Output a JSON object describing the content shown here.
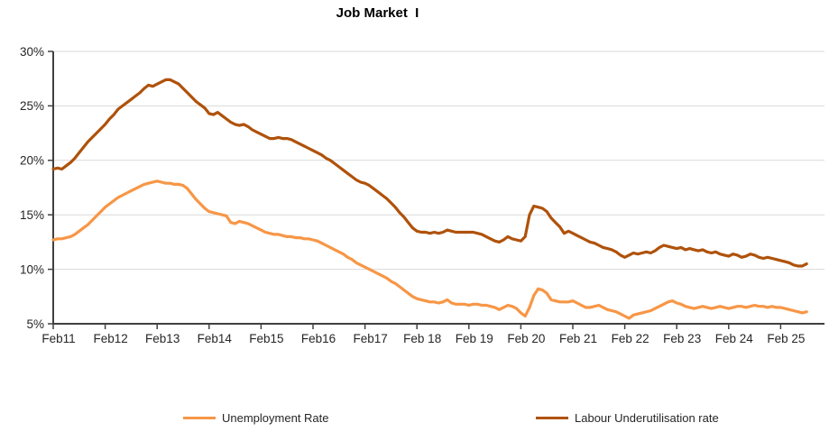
{
  "chart_data": {
    "type": "line",
    "title": "Job Market  I",
    "y_axis": {
      "min": 5,
      "max": 30,
      "tick_values": [
        5,
        10,
        15,
        20,
        25,
        30
      ],
      "tick_labels": [
        "5%",
        "10%",
        "15%",
        "20%",
        "25%",
        "30%"
      ],
      "gridlines": true,
      "gridline_color": "#D9D9D9",
      "axis_color": "#404040",
      "label_color": "#262626"
    },
    "x_axis": {
      "tick_labels": [
        "Feb11",
        "Feb12",
        "Feb13",
        "Feb14",
        "Feb15",
        "Feb16",
        "Feb17",
        "Feb 18",
        "Feb 19",
        "Feb 20",
        "Feb 21",
        "Feb 22",
        "Feb 23",
        "Feb 24",
        "Feb 25"
      ],
      "frequency": "monthly",
      "start": "Feb 2011",
      "end": "Aug 2025"
    },
    "legend": {
      "position": "bottom",
      "items": [
        "Unemployment Rate",
        "Labour Underutilisation rate"
      ]
    },
    "series": [
      {
        "name": "Unemployment Rate",
        "color": "#F79646",
        "values": [
          12.7,
          12.8,
          12.8,
          12.9,
          13.0,
          13.2,
          13.5,
          13.8,
          14.1,
          14.5,
          14.9,
          15.3,
          15.7,
          16.0,
          16.3,
          16.6,
          16.8,
          17.0,
          17.2,
          17.4,
          17.6,
          17.8,
          17.9,
          18.0,
          18.1,
          18.0,
          17.9,
          17.9,
          17.8,
          17.8,
          17.7,
          17.4,
          16.9,
          16.4,
          16.0,
          15.6,
          15.3,
          15.2,
          15.1,
          15.0,
          14.9,
          14.3,
          14.2,
          14.4,
          14.3,
          14.2,
          14.0,
          13.8,
          13.6,
          13.4,
          13.3,
          13.2,
          13.2,
          13.1,
          13.0,
          13.0,
          12.9,
          12.9,
          12.8,
          12.8,
          12.7,
          12.6,
          12.4,
          12.2,
          12.0,
          11.8,
          11.6,
          11.4,
          11.1,
          10.9,
          10.6,
          10.4,
          10.2,
          10.0,
          9.8,
          9.6,
          9.4,
          9.2,
          8.9,
          8.7,
          8.4,
          8.1,
          7.8,
          7.5,
          7.3,
          7.2,
          7.1,
          7.0,
          7.0,
          6.9,
          7.0,
          7.2,
          6.9,
          6.8,
          6.8,
          6.8,
          6.7,
          6.8,
          6.8,
          6.7,
          6.7,
          6.6,
          6.5,
          6.3,
          6.5,
          6.7,
          6.6,
          6.4,
          6.0,
          5.7,
          6.5,
          7.6,
          8.2,
          8.1,
          7.8,
          7.2,
          7.1,
          7.0,
          7.0,
          7.0,
          7.1,
          6.9,
          6.7,
          6.5,
          6.5,
          6.6,
          6.7,
          6.5,
          6.3,
          6.2,
          6.1,
          5.9,
          5.7,
          5.5,
          5.8,
          5.9,
          6.0,
          6.1,
          6.2,
          6.4,
          6.6,
          6.8,
          7.0,
          7.1,
          6.9,
          6.8,
          6.6,
          6.5,
          6.4,
          6.5,
          6.6,
          6.5,
          6.4,
          6.5,
          6.6,
          6.5,
          6.4,
          6.5,
          6.6,
          6.6,
          6.5,
          6.6,
          6.7,
          6.6,
          6.6,
          6.5,
          6.6,
          6.5,
          6.5,
          6.4,
          6.3,
          6.2,
          6.1,
          6.0,
          6.1
        ]
      },
      {
        "name": "Labour Underutilisation rate",
        "color": "#AF520B",
        "values": [
          19.2,
          19.3,
          19.2,
          19.5,
          19.8,
          20.2,
          20.7,
          21.2,
          21.7,
          22.1,
          22.5,
          22.9,
          23.3,
          23.8,
          24.2,
          24.7,
          25.0,
          25.3,
          25.6,
          25.9,
          26.2,
          26.6,
          26.9,
          26.8,
          27.0,
          27.2,
          27.4,
          27.4,
          27.2,
          27.0,
          26.6,
          26.2,
          25.8,
          25.4,
          25.1,
          24.8,
          24.3,
          24.2,
          24.4,
          24.1,
          23.8,
          23.5,
          23.3,
          23.2,
          23.3,
          23.1,
          22.8,
          22.6,
          22.4,
          22.2,
          22.0,
          22.0,
          22.1,
          22.0,
          22.0,
          21.9,
          21.7,
          21.5,
          21.3,
          21.1,
          20.9,
          20.7,
          20.5,
          20.2,
          20.0,
          19.7,
          19.4,
          19.1,
          18.8,
          18.5,
          18.2,
          18.0,
          17.9,
          17.7,
          17.4,
          17.1,
          16.8,
          16.5,
          16.1,
          15.7,
          15.2,
          14.8,
          14.3,
          13.8,
          13.5,
          13.4,
          13.4,
          13.3,
          13.4,
          13.3,
          13.4,
          13.6,
          13.5,
          13.4,
          13.4,
          13.4,
          13.4,
          13.4,
          13.3,
          13.2,
          13.0,
          12.8,
          12.6,
          12.5,
          12.7,
          13.0,
          12.8,
          12.7,
          12.6,
          13.0,
          15.0,
          15.8,
          15.7,
          15.6,
          15.3,
          14.7,
          14.3,
          13.9,
          13.3,
          13.5,
          13.3,
          13.1,
          12.9,
          12.7,
          12.5,
          12.4,
          12.2,
          12.0,
          11.9,
          11.8,
          11.6,
          11.3,
          11.1,
          11.3,
          11.5,
          11.4,
          11.5,
          11.6,
          11.5,
          11.7,
          12.0,
          12.2,
          12.1,
          12.0,
          11.9,
          12.0,
          11.8,
          11.9,
          11.8,
          11.7,
          11.8,
          11.6,
          11.5,
          11.6,
          11.4,
          11.3,
          11.2,
          11.4,
          11.3,
          11.1,
          11.2,
          11.4,
          11.3,
          11.1,
          11.0,
          11.1,
          11.0,
          10.9,
          10.8,
          10.7,
          10.6,
          10.4,
          10.3,
          10.3,
          10.5
        ]
      }
    ]
  }
}
